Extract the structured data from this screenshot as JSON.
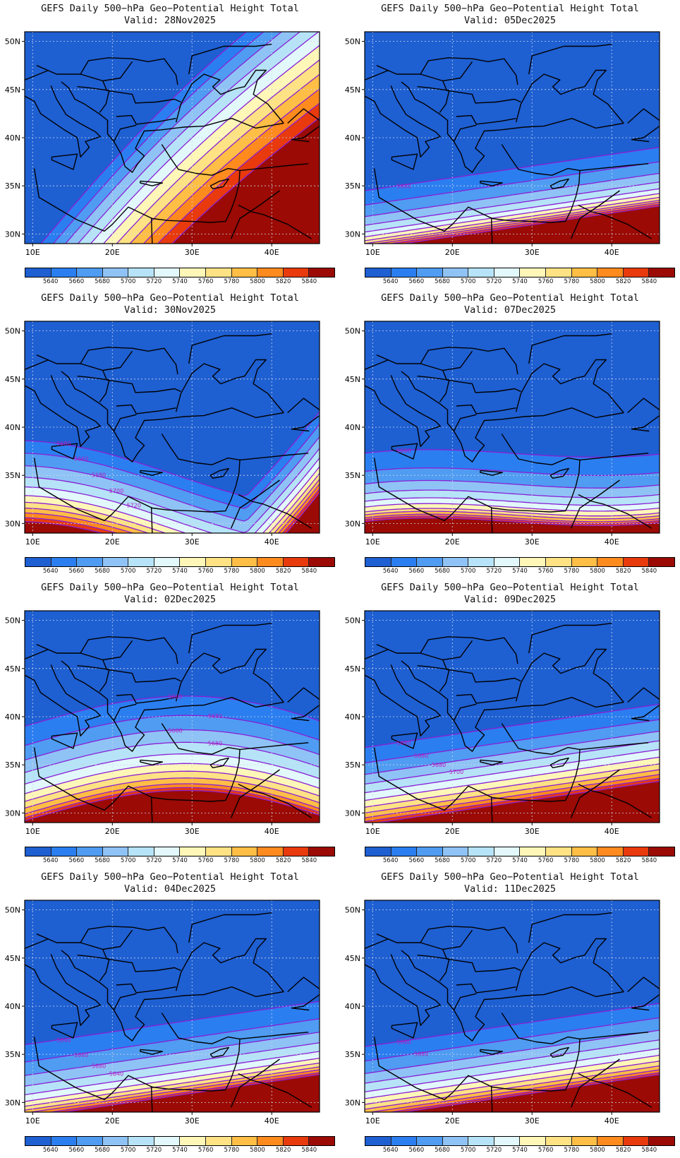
{
  "map_title": "GEFS Daily 500−hPa Geo−Potential Height Total",
  "valid_prefix": "Valid:",
  "lat_labels": [
    "50N",
    "45N",
    "40N",
    "35N",
    "30N"
  ],
  "lon_labels": [
    "10E",
    "20E",
    "30E",
    "40E"
  ],
  "lat_values": [
    50,
    45,
    40,
    35,
    30
  ],
  "lon_values": [
    10,
    20,
    30,
    40
  ],
  "extent": {
    "lon_min": 9,
    "lon_max": 46,
    "lat_min": 29,
    "lat_max": 51
  },
  "colorbar": {
    "labels": [
      "5640",
      "5660",
      "5680",
      "5700",
      "5720",
      "5740",
      "5760",
      "5780",
      "5800",
      "5820",
      "5840"
    ],
    "colors": [
      "#1e5fd2",
      "#2b7ef0",
      "#4f9cf2",
      "#8fc3f6",
      "#b6e3f7",
      "#e2f8fb",
      "#fff7b8",
      "#ffe284",
      "#ffbe45",
      "#ff8a1e",
      "#e83a0c",
      "#9b0a04"
    ]
  },
  "line_color": "#8a1fd6",
  "panels": [
    {
      "valid": "28Nov2025",
      "bands": [
        [
          41,
          -0.012
        ],
        [
          39.5,
          0
        ],
        [
          38,
          0.01
        ],
        [
          36.5,
          0.02
        ],
        [
          35,
          0.03
        ],
        [
          33.5,
          0.04
        ],
        [
          32,
          0.05
        ],
        [
          30.5,
          0.06
        ],
        [
          29,
          0.07
        ],
        [
          27.5,
          0.08
        ],
        [
          26,
          0.09
        ]
      ],
      "tilt_mode": "steep",
      "labels": []
    },
    {
      "valid": "30Nov2025",
      "bands": [
        [
          35.6,
          0
        ],
        [
          34.3,
          0
        ],
        [
          33,
          0
        ],
        [
          31.8,
          0
        ],
        [
          30.8,
          0
        ],
        [
          29.9,
          0
        ],
        [
          29.2,
          0
        ],
        [
          28.6,
          0
        ],
        [
          28.1,
          0
        ],
        [
          27.6,
          0
        ],
        [
          27.2,
          0
        ]
      ],
      "tilt_mode": "trough",
      "labels": [
        "5680",
        "5660",
        "5680",
        "5700",
        "5720"
      ]
    },
    {
      "valid": "02Dec2025",
      "bands": [
        [
          39,
          0
        ],
        [
          37,
          0
        ],
        [
          35.5,
          0
        ],
        [
          34.2,
          0
        ],
        [
          33,
          0
        ],
        [
          32,
          0
        ],
        [
          31.2,
          0
        ],
        [
          30.5,
          0
        ],
        [
          29.9,
          0
        ],
        [
          29.5,
          0
        ],
        [
          29.2,
          0
        ]
      ],
      "tilt_mode": "ridge",
      "labels": [
        "5660",
        "5680",
        "5660",
        "5680"
      ]
    },
    {
      "valid": "04Dec2025",
      "bands": [
        [
          36,
          0
        ],
        [
          34.2,
          0
        ],
        [
          32.8,
          0
        ],
        [
          31.7,
          0
        ],
        [
          30.8,
          0
        ],
        [
          30.1,
          0
        ],
        [
          29.6,
          0
        ],
        [
          29.2,
          0
        ],
        [
          28.9,
          0
        ],
        [
          28.6,
          0
        ],
        [
          28.4,
          0
        ]
      ],
      "tilt_mode": "rise",
      "labels": [
        "5640",
        "5660",
        "5680",
        "5640"
      ]
    },
    {
      "valid": "05Dec2025",
      "bands": [
        [
          34.5,
          0
        ],
        [
          33,
          0
        ],
        [
          31.8,
          0
        ],
        [
          30.9,
          0
        ],
        [
          30.2,
          0
        ],
        [
          29.7,
          0
        ],
        [
          29.3,
          0
        ],
        [
          29,
          0
        ],
        [
          28.8,
          0
        ],
        [
          28.6,
          0
        ],
        [
          28.4,
          0
        ]
      ],
      "tilt_mode": "rise",
      "labels": [
        "5640"
      ]
    },
    {
      "valid": "07Dec2025",
      "bands": [
        [
          35.5,
          0
        ],
        [
          33.6,
          0
        ],
        [
          32.3,
          0
        ],
        [
          31.3,
          0
        ],
        [
          30.5,
          0
        ],
        [
          29.9,
          0
        ],
        [
          29.4,
          0
        ],
        [
          29.1,
          0
        ],
        [
          28.8,
          0
        ],
        [
          28.6,
          0
        ],
        [
          28.4,
          0
        ]
      ],
      "tilt_mode": "trough2",
      "labels": [
        "5660"
      ]
    },
    {
      "valid": "09Dec2025",
      "bands": [
        [
          36.8,
          0
        ],
        [
          35.2,
          0
        ],
        [
          34,
          0
        ],
        [
          33,
          0
        ],
        [
          32.1,
          0
        ],
        [
          31.3,
          0
        ],
        [
          30.6,
          0
        ],
        [
          30,
          0
        ],
        [
          29.5,
          0
        ],
        [
          29.1,
          0
        ],
        [
          28.8,
          0
        ]
      ],
      "tilt_mode": "rise",
      "labels": [
        "5640",
        "5660",
        "5680",
        "5700"
      ]
    },
    {
      "valid": "11Dec2025",
      "bands": [
        [
          35.8,
          0
        ],
        [
          34.3,
          0
        ],
        [
          33,
          0
        ],
        [
          32,
          0
        ],
        [
          31.1,
          0
        ],
        [
          30.4,
          0
        ],
        [
          29.8,
          0
        ],
        [
          29.3,
          0
        ],
        [
          28.9,
          0
        ],
        [
          28.6,
          0
        ],
        [
          28.4,
          0
        ]
      ],
      "tilt_mode": "rise",
      "labels": [
        "5660",
        "5680"
      ]
    }
  ]
}
